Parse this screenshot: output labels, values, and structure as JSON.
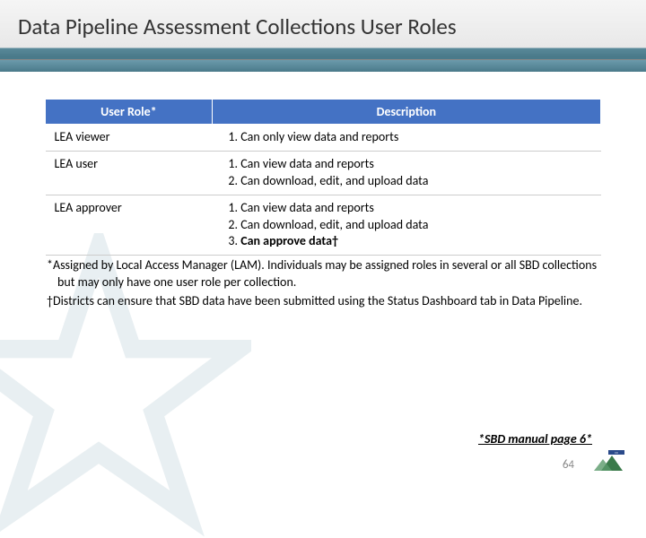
{
  "title": "Data Pipeline Assessment Collections User Roles",
  "table": {
    "headers": {
      "col1": "User Role*",
      "col2": "Description"
    },
    "rows": [
      {
        "role": "LEA viewer",
        "items": [
          "Can only view data and reports"
        ]
      },
      {
        "role": "LEA user",
        "items": [
          "Can view data and reports",
          "Can download, edit, and upload data"
        ]
      },
      {
        "role": "LEA approver",
        "items": [
          "Can view data and reports",
          "Can download, edit, and upload data",
          "Can approve data†"
        ]
      }
    ]
  },
  "footnotes": {
    "line1": "*Assigned by Local Access Manager (LAM). Individuals may be assigned roles in several or all SBD collections but may only have one user role per collection.",
    "line2": "†Districts can ensure that SBD data have been submitted using the Status Dashboard tab in Data Pipeline."
  },
  "sbd_ref": "*SBD manual page 6*",
  "page_number": "64",
  "colors": {
    "header_bg": "#4472c4",
    "title_strip": "#4a7a8a"
  }
}
